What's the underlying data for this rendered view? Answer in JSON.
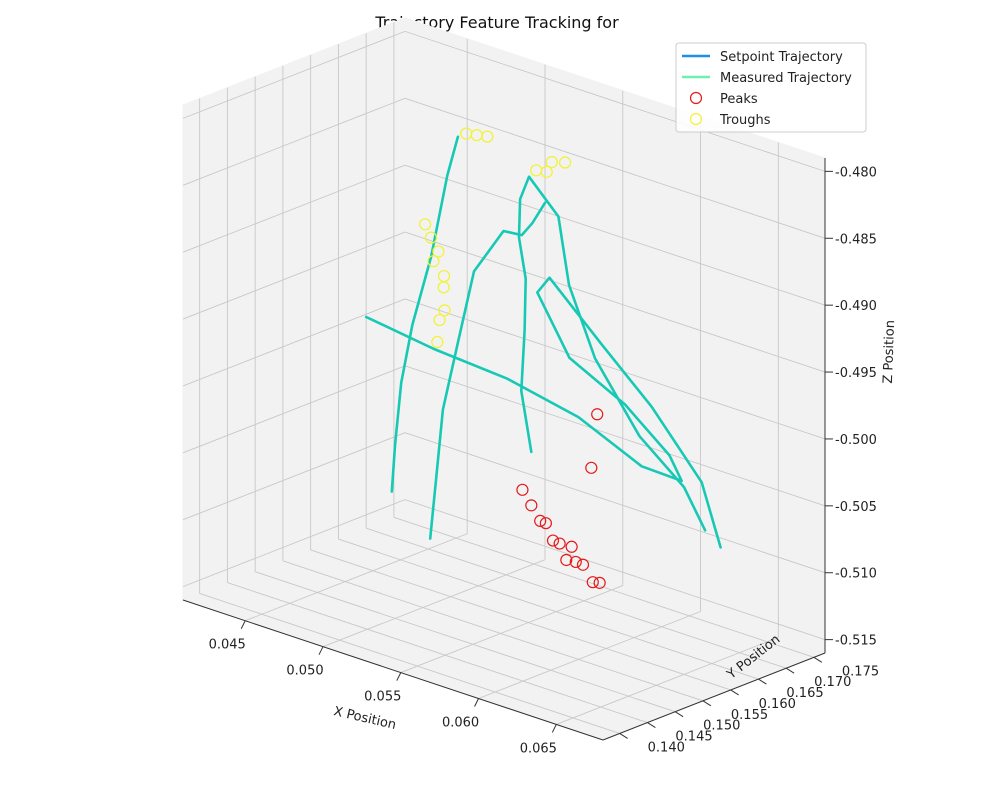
{
  "chart_data": {
    "type": "line3d",
    "title": "Trajectory Feature Tracking for",
    "xlabel": "X Position",
    "ylabel": "Y Position",
    "zlabel": "Z Position",
    "xticks": [
      "0.045",
      "0.050",
      "0.055",
      "0.060",
      "0.065"
    ],
    "yticks": [
      "0.140",
      "0.145",
      "0.150",
      "0.155",
      "0.160",
      "0.165",
      "0.170",
      "0.175"
    ],
    "zticks": [
      "-0.480",
      "-0.485",
      "-0.490",
      "-0.495",
      "-0.500",
      "-0.505",
      "-0.510",
      "-0.515"
    ],
    "xlim": [
      0.041,
      0.068
    ],
    "ylim": [
      0.137,
      0.177
    ],
    "zlim": [
      -0.516,
      -0.479
    ],
    "legend": {
      "placement": "top-right",
      "entries": [
        {
          "label": "Setpoint Trajectory",
          "kind": "line",
          "color": "#1f8fe5"
        },
        {
          "label": "Measured Trajectory",
          "kind": "line",
          "color": "#6ef0b0"
        },
        {
          "label": "Peaks",
          "kind": "marker",
          "color": "#e31a1c"
        },
        {
          "label": "Troughs",
          "kind": "marker",
          "color": "#f2f230"
        }
      ]
    },
    "series": [
      {
        "name": "Measured Trajectory",
        "color": "#17c9b4",
        "points": [
          [
            0.0625,
            0.1395,
            -0.497
          ],
          [
            0.0615,
            0.1405,
            -0.493
          ],
          [
            0.061,
            0.1425,
            -0.489
          ],
          [
            0.06,
            0.1455,
            -0.486
          ],
          [
            0.0585,
            0.1485,
            -0.484
          ],
          [
            0.0575,
            0.1515,
            -0.482
          ],
          [
            0.057,
            0.1545,
            -0.481
          ],
          [
            0.058,
            0.157,
            -0.484
          ],
          [
            0.0585,
            0.1575,
            -0.489
          ],
          [
            0.06,
            0.158,
            -0.494
          ],
          [
            0.0625,
            0.159,
            -0.499
          ],
          [
            0.065,
            0.16,
            -0.502
          ],
          [
            0.066,
            0.161,
            -0.505
          ]
        ]
      },
      {
        "name": "Measured Trajectory",
        "color": "#17c9b4",
        "points": [
          [
            0.056,
            0.1395,
            -0.506
          ],
          [
            0.0555,
            0.142,
            -0.502
          ],
          [
            0.0545,
            0.146,
            -0.498
          ],
          [
            0.054,
            0.15,
            -0.494
          ],
          [
            0.054,
            0.153,
            -0.489
          ],
          [
            0.055,
            0.1555,
            -0.486
          ],
          [
            0.056,
            0.156,
            -0.486
          ],
          [
            0.0565,
            0.1565,
            -0.485
          ],
          [
            0.0575,
            0.156,
            -0.483
          ]
        ]
      },
      {
        "name": "Measured Trajectory",
        "color": "#17c9b4",
        "points": [
          [
            0.0505,
            0.148,
            -0.506
          ],
          [
            0.05,
            0.15,
            -0.503
          ],
          [
            0.0495,
            0.1525,
            -0.499
          ],
          [
            0.0495,
            0.1545,
            -0.495
          ],
          [
            0.05,
            0.1565,
            -0.49
          ],
          [
            0.0505,
            0.158,
            -0.484
          ],
          [
            0.051,
            0.1585,
            -0.481
          ]
        ]
      },
      {
        "name": "Measured Trajectory",
        "color": "#17c9b4",
        "points": [
          [
            0.046,
            0.156,
            -0.496
          ],
          [
            0.05,
            0.157,
            -0.497
          ],
          [
            0.054,
            0.159,
            -0.498
          ],
          [
            0.0575,
            0.162,
            -0.5
          ],
          [
            0.0605,
            0.165,
            -0.503
          ],
          [
            0.062,
            0.168,
            -0.504
          ],
          [
            0.0605,
            0.17,
            -0.503
          ],
          [
            0.058,
            0.169,
            -0.5
          ],
          [
            0.0555,
            0.166,
            -0.497
          ],
          [
            0.0545,
            0.163,
            -0.492
          ],
          [
            0.056,
            0.161,
            -0.49
          ],
          [
            0.059,
            0.162,
            -0.494
          ],
          [
            0.0615,
            0.164,
            -0.498
          ],
          [
            0.064,
            0.166,
            -0.503
          ],
          [
            0.0645,
            0.168,
            -0.508
          ]
        ]
      }
    ],
    "peaks": [
      [
        0.062,
        0.1393,
        -0.5
      ],
      [
        0.0625,
        0.1395,
        -0.501
      ],
      [
        0.063,
        0.1397,
        -0.502
      ],
      [
        0.0634,
        0.1396,
        -0.502
      ],
      [
        0.064,
        0.1392,
        -0.503
      ],
      [
        0.0645,
        0.139,
        -0.503
      ],
      [
        0.065,
        0.1388,
        -0.504
      ],
      [
        0.0652,
        0.1392,
        -0.503
      ],
      [
        0.0655,
        0.1391,
        -0.504
      ],
      [
        0.066,
        0.139,
        -0.504
      ],
      [
        0.0667,
        0.1388,
        -0.505
      ],
      [
        0.067,
        0.1392,
        -0.505
      ],
      [
        0.066,
        0.1405,
        -0.497
      ],
      [
        0.0662,
        0.141,
        -0.493
      ]
    ],
    "troughs": [
      [
        0.051,
        0.16,
        -0.481
      ],
      [
        0.0515,
        0.1605,
        -0.481
      ],
      [
        0.052,
        0.161,
        -0.481
      ],
      [
        0.0555,
        0.16,
        -0.482
      ],
      [
        0.056,
        0.1605,
        -0.482
      ],
      [
        0.0565,
        0.16,
        -0.481
      ],
      [
        0.057,
        0.161,
        -0.481
      ],
      [
        0.0505,
        0.154,
        -0.487
      ],
      [
        0.0507,
        0.1545,
        -0.488
      ],
      [
        0.051,
        0.155,
        -0.489
      ],
      [
        0.0505,
        0.1555,
        -0.49
      ],
      [
        0.051,
        0.156,
        -0.491
      ],
      [
        0.0508,
        0.1565,
        -0.492
      ],
      [
        0.0505,
        0.1575,
        -0.494
      ],
      [
        0.05,
        0.158,
        -0.495
      ],
      [
        0.0495,
        0.159,
        -0.497
      ]
    ]
  }
}
